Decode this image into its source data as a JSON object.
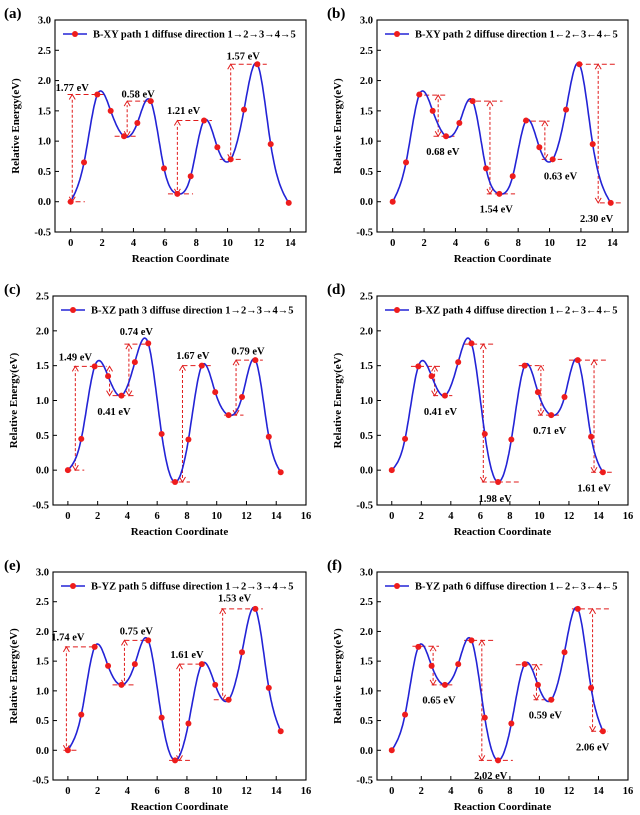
{
  "figure": {
    "colors": {
      "curve": "#2323d6",
      "marker": "#ee1c1c",
      "annotation": "#e01b1b",
      "axis": "#000000"
    }
  },
  "chart_data": [
    {
      "type": "line",
      "panel_label": "(a)",
      "legend": "B-XY path 1 diffuse direction 1→2→3→4→5",
      "xlabel": "Reaction Coordinate",
      "ylabel": "Relative Energy(eV)",
      "xlim": [
        -1,
        15
      ],
      "xticks": [
        0,
        2,
        4,
        6,
        8,
        10,
        12,
        14
      ],
      "ylim": [
        -0.5,
        3.0
      ],
      "yticks": [
        -0.5,
        0.0,
        0.5,
        1.0,
        1.5,
        2.0,
        2.5,
        3.0
      ],
      "grid": false,
      "legend_position": "top-left",
      "series": [
        {
          "x": [
            0,
            0.85,
            1.7,
            2.55,
            3.4,
            4.25,
            5.1,
            5.95,
            6.8,
            7.65,
            8.5,
            9.35,
            10.2,
            11.05,
            11.9,
            12.75,
            13.9
          ],
          "y": [
            0.0,
            0.65,
            1.77,
            1.5,
            1.08,
            1.3,
            1.66,
            0.55,
            0.13,
            0.42,
            1.34,
            0.9,
            0.7,
            1.52,
            2.27,
            0.95,
            -0.02
          ]
        }
      ],
      "annotations": [
        {
          "text": "1.77 eV",
          "x1": 0.1,
          "y_low": 0.0,
          "y_high": 1.77,
          "lx1": -0.2,
          "lx2": 2.2,
          "llx1": -0.2,
          "llx2": 0.9,
          "lab_x": 0.1,
          "lab_y": 1.78,
          "ha": "middle",
          "va": "above"
        },
        {
          "text": "0.58 eV",
          "x1": 3.6,
          "y_low": 1.08,
          "y_high": 1.66,
          "lx1": 3.6,
          "lx2": 5.3,
          "llx1": 2.8,
          "llx2": 4.2,
          "lab_x": 4.3,
          "lab_y": 1.67,
          "ha": "middle",
          "va": "above"
        },
        {
          "text": "1.21 eV",
          "x1": 6.8,
          "y_low": 0.13,
          "y_high": 1.34,
          "lx1": 6.8,
          "lx2": 9.0,
          "llx1": 6.2,
          "llx2": 7.8,
          "lab_x": 7.2,
          "lab_y": 1.4,
          "ha": "middle",
          "va": "above"
        },
        {
          "text": "1.57 eV",
          "x1": 10.2,
          "y_low": 0.7,
          "y_high": 2.27,
          "lx1": 10.2,
          "lx2": 12.5,
          "llx1": 9.5,
          "llx2": 11.0,
          "lab_x": 11.0,
          "lab_y": 2.3,
          "ha": "middle",
          "va": "above"
        }
      ]
    },
    {
      "type": "line",
      "panel_label": "(b)",
      "legend": "B-XY path 2 diffuse direction 1←2←3←4←5",
      "xlabel": "Reaction Coordinate",
      "ylabel": "Relative Energy(eV)",
      "xlim": [
        -1,
        15
      ],
      "xticks": [
        0,
        2,
        4,
        6,
        8,
        10,
        12,
        14
      ],
      "ylim": [
        -0.5,
        3.0
      ],
      "yticks": [
        -0.5,
        0.0,
        0.5,
        1.0,
        1.5,
        2.0,
        2.5,
        3.0
      ],
      "grid": false,
      "legend_position": "top-left",
      "series": [
        {
          "x": [
            0,
            0.85,
            1.7,
            2.55,
            3.4,
            4.25,
            5.1,
            5.95,
            6.8,
            7.65,
            8.5,
            9.35,
            10.2,
            11.05,
            11.9,
            12.75,
            13.9
          ],
          "y": [
            0.0,
            0.65,
            1.77,
            1.5,
            1.08,
            1.3,
            1.66,
            0.55,
            0.13,
            0.42,
            1.34,
            0.9,
            0.7,
            1.52,
            2.27,
            0.95,
            -0.02
          ]
        }
      ],
      "annotations": [
        {
          "text": "0.68 eV",
          "x1": 2.9,
          "y_low": 1.08,
          "y_high": 1.76,
          "lx1": 1.5,
          "lx2": 3.4,
          "llx1": 2.6,
          "llx2": 4.0,
          "lab_x": 3.2,
          "lab_y": 0.95,
          "ha": "middle",
          "va": "below"
        },
        {
          "text": "1.54 eV",
          "x1": 6.2,
          "y_low": 0.13,
          "y_high": 1.66,
          "lx1": 4.8,
          "lx2": 7.0,
          "llx1": 6.0,
          "llx2": 7.8,
          "lab_x": 6.6,
          "lab_y": 0.0,
          "ha": "middle",
          "va": "below"
        },
        {
          "text": "0.63 eV",
          "x1": 9.7,
          "y_low": 0.7,
          "y_high": 1.33,
          "lx1": 8.3,
          "lx2": 10.0,
          "llx1": 9.5,
          "llx2": 10.8,
          "lab_x": 10.7,
          "lab_y": 0.55,
          "ha": "middle",
          "va": "below"
        },
        {
          "text": "2.30 eV",
          "x1": 13.1,
          "y_low": -0.02,
          "y_high": 2.27,
          "lx1": 11.8,
          "lx2": 14.3,
          "llx1": 13.2,
          "llx2": 14.7,
          "lab_x": 13.0,
          "lab_y": -0.15,
          "ha": "middle",
          "va": "below"
        }
      ]
    },
    {
      "type": "line",
      "panel_label": "(c)",
      "legend": "B-XZ path 3 diffuse direction 1→2→3→4→5",
      "xlabel": "Reaction Coordinate",
      "ylabel": "Relative Energy(eV)",
      "xlim": [
        -1,
        16
      ],
      "xticks": [
        0,
        2,
        4,
        6,
        8,
        10,
        12,
        14,
        16
      ],
      "ylim": [
        -0.5,
        2.5
      ],
      "yticks": [
        -0.5,
        0.0,
        0.5,
        1.0,
        1.5,
        2.0,
        2.5
      ],
      "grid": false,
      "legend_position": "top-left",
      "series": [
        {
          "x": [
            0,
            0.9,
            1.8,
            2.7,
            3.6,
            4.5,
            5.4,
            6.3,
            7.2,
            8.1,
            9.0,
            9.9,
            10.8,
            11.7,
            12.6,
            13.5,
            14.3
          ],
          "y": [
            0.0,
            0.45,
            1.49,
            1.35,
            1.07,
            1.55,
            1.82,
            0.52,
            -0.17,
            0.44,
            1.5,
            1.12,
            0.79,
            1.05,
            1.58,
            0.48,
            -0.03
          ]
        }
      ],
      "annotations": [
        {
          "text": "1.49 eV",
          "x1": 0.5,
          "y_low": 0.0,
          "y_high": 1.49,
          "lx1": 0.4,
          "lx2": 2.6,
          "llx1": -0.1,
          "llx2": 1.1,
          "lab_x": 0.5,
          "lab_y": 1.53,
          "ha": "middle",
          "va": "above"
        },
        {
          "text": "0.74 eV",
          "x1": 4.1,
          "y_low": 1.07,
          "y_high": 1.81,
          "lx1": 3.8,
          "lx2": 5.5,
          "llx1": 3.0,
          "llx2": 4.5,
          "lab_x": 4.6,
          "lab_y": 1.9,
          "ha": "middle",
          "va": "above"
        },
        {
          "text": "0.41 eV",
          "x1": 2.8,
          "y_low": 1.07,
          "y_high": 1.49,
          "lx1": -5,
          "lx2": -5,
          "llx1": -5,
          "llx2": -5,
          "lab_x": 3.1,
          "lab_y": 0.95,
          "ha": "middle",
          "va": "below"
        },
        {
          "text": "1.67 eV",
          "x1": 7.7,
          "y_low": -0.17,
          "y_high": 1.5,
          "lx1": 7.7,
          "lx2": 9.6,
          "llx1": 6.9,
          "llx2": 8.2,
          "lab_x": 8.4,
          "lab_y": 1.55,
          "ha": "middle",
          "va": "above"
        },
        {
          "text": "0.79 eV",
          "x1": 11.3,
          "y_low": 0.79,
          "y_high": 1.58,
          "lx1": 11.3,
          "lx2": 13.1,
          "llx1": 10.5,
          "llx2": 11.8,
          "lab_x": 12.1,
          "lab_y": 1.62,
          "ha": "middle",
          "va": "above"
        }
      ]
    },
    {
      "type": "line",
      "panel_label": "(d)",
      "legend": "B-XZ path 4 diffuse direction 1←2←3←4←5",
      "xlabel": "Reaction Coordinate",
      "ylabel": "Relative Energy(eV)",
      "xlim": [
        -1,
        16
      ],
      "xticks": [
        0,
        2,
        4,
        6,
        8,
        10,
        12,
        14,
        16
      ],
      "ylim": [
        -0.5,
        2.5
      ],
      "yticks": [
        -0.5,
        0.0,
        0.5,
        1.0,
        1.5,
        2.0,
        2.5
      ],
      "grid": false,
      "legend_position": "top-left",
      "series": [
        {
          "x": [
            0,
            0.9,
            1.8,
            2.7,
            3.6,
            4.5,
            5.4,
            6.3,
            7.2,
            8.1,
            9.0,
            9.9,
            10.8,
            11.7,
            12.6,
            13.5,
            14.3
          ],
          "y": [
            0.0,
            0.45,
            1.49,
            1.35,
            1.07,
            1.55,
            1.82,
            0.52,
            -0.17,
            0.44,
            1.5,
            1.12,
            0.79,
            1.05,
            1.58,
            0.48,
            -0.03
          ]
        }
      ],
      "annotations": [
        {
          "text": "0.41 eV",
          "x1": 2.9,
          "y_low": 1.07,
          "y_high": 1.49,
          "lx1": 1.3,
          "lx2": 3.3,
          "llx1": 2.8,
          "llx2": 4.1,
          "lab_x": 3.3,
          "lab_y": 0.95,
          "ha": "middle",
          "va": "below"
        },
        {
          "text": "1.98 eV",
          "x1": 6.2,
          "y_low": -0.17,
          "y_high": 1.81,
          "lx1": 4.9,
          "lx2": 6.9,
          "llx1": 6.1,
          "llx2": 8.6,
          "lab_x": 7.0,
          "lab_y": -0.3,
          "ha": "middle",
          "va": "below"
        },
        {
          "text": "0.71 eV",
          "x1": 10.1,
          "y_low": 0.79,
          "y_high": 1.5,
          "lx1": 8.6,
          "lx2": 10.3,
          "llx1": 9.9,
          "llx2": 11.4,
          "lab_x": 10.7,
          "lab_y": 0.68,
          "ha": "middle",
          "va": "below"
        },
        {
          "text": "1.61 eV",
          "x1": 13.7,
          "y_low": -0.03,
          "y_high": 1.58,
          "lx1": 12.0,
          "lx2": 14.5,
          "llx1": 13.5,
          "llx2": 14.9,
          "lab_x": 13.7,
          "lab_y": -0.15,
          "ha": "middle",
          "va": "below"
        }
      ]
    },
    {
      "type": "line",
      "panel_label": "(e)",
      "legend": "B-YZ path 5 diffuse direction 1→2→3→4→5",
      "xlabel": "Reaction Coordinate",
      "ylabel": "Relative Energy(eV)",
      "xlim": [
        -1,
        16
      ],
      "xticks": [
        0,
        2,
        4,
        6,
        8,
        10,
        12,
        14,
        16
      ],
      "ylim": [
        -0.5,
        3.0
      ],
      "yticks": [
        -0.5,
        0.0,
        0.5,
        1.0,
        1.5,
        2.0,
        2.5,
        3.0
      ],
      "grid": false,
      "legend_position": "top-left",
      "series": [
        {
          "x": [
            0,
            0.9,
            1.8,
            2.7,
            3.6,
            4.5,
            5.4,
            6.3,
            7.2,
            8.1,
            9.0,
            9.9,
            10.8,
            11.7,
            12.6,
            13.5,
            14.3
          ],
          "y": [
            0.0,
            0.6,
            1.74,
            1.42,
            1.1,
            1.45,
            1.85,
            0.55,
            -0.17,
            0.45,
            1.45,
            1.1,
            0.85,
            1.65,
            2.38,
            1.05,
            0.32
          ]
        }
      ],
      "annotations": [
        {
          "text": "1.74 eV",
          "x1": -0.1,
          "y_low": 0.0,
          "y_high": 1.74,
          "lx1": -0.2,
          "lx2": 1.9,
          "llx1": -0.3,
          "llx2": 0.6,
          "lab_x": 0.0,
          "lab_y": 1.8,
          "ha": "middle",
          "va": "above"
        },
        {
          "text": "0.75 eV",
          "x1": 3.8,
          "y_low": 1.1,
          "y_high": 1.85,
          "lx1": 3.8,
          "lx2": 5.4,
          "llx1": 3.0,
          "llx2": 4.5,
          "lab_x": 4.6,
          "lab_y": 1.9,
          "ha": "middle",
          "va": "above"
        },
        {
          "text": "1.61 eV",
          "x1": 7.5,
          "y_low": -0.17,
          "y_high": 1.45,
          "lx1": 7.5,
          "lx2": 9.0,
          "llx1": 6.8,
          "llx2": 8.2,
          "lab_x": 8.0,
          "lab_y": 1.5,
          "ha": "middle",
          "va": "above"
        },
        {
          "text": "1.53 eV",
          "x1": 10.4,
          "y_low": 0.85,
          "y_high": 2.38,
          "lx1": 10.3,
          "lx2": 13.1,
          "llx1": 9.8,
          "llx2": 11.0,
          "lab_x": 11.2,
          "lab_y": 2.45,
          "ha": "middle",
          "va": "above"
        }
      ]
    },
    {
      "type": "line",
      "panel_label": "(f)",
      "legend": "B-YZ path 6 diffuse direction 1←2←3←4←5",
      "xlabel": "Reaction Coordinate",
      "ylabel": "Relative Energy(eV)",
      "xlim": [
        -1,
        16
      ],
      "xticks": [
        0,
        2,
        4,
        6,
        8,
        10,
        12,
        14,
        16
      ],
      "ylim": [
        -0.5,
        3.0
      ],
      "yticks": [
        -0.5,
        0.0,
        0.5,
        1.0,
        1.5,
        2.0,
        2.5,
        3.0
      ],
      "grid": false,
      "legend_position": "top-left",
      "series": [
        {
          "x": [
            0,
            0.9,
            1.8,
            2.7,
            3.6,
            4.5,
            5.4,
            6.3,
            7.2,
            8.1,
            9.0,
            9.9,
            10.8,
            11.7,
            12.6,
            13.5,
            14.3
          ],
          "y": [
            0.0,
            0.6,
            1.74,
            1.42,
            1.1,
            1.45,
            1.85,
            0.55,
            -0.17,
            0.45,
            1.45,
            1.1,
            0.85,
            1.65,
            2.38,
            1.05,
            0.32
          ]
        }
      ],
      "annotations": [
        {
          "text": "0.65 eV",
          "x1": 2.8,
          "y_low": 1.1,
          "y_high": 1.75,
          "lx1": 1.4,
          "lx2": 3.2,
          "llx1": 2.7,
          "llx2": 4.1,
          "lab_x": 3.2,
          "lab_y": 0.97,
          "ha": "middle",
          "va": "below"
        },
        {
          "text": "2.02 eV",
          "x1": 6.1,
          "y_low": -0.17,
          "y_high": 1.85,
          "lx1": 4.9,
          "lx2": 6.9,
          "llx1": 5.9,
          "llx2": 8.2,
          "lab_x": 6.7,
          "lab_y": -0.3,
          "ha": "middle",
          "va": "below"
        },
        {
          "text": "0.59 eV",
          "x1": 9.8,
          "y_low": 0.85,
          "y_high": 1.44,
          "lx1": 8.4,
          "lx2": 10.2,
          "llx1": 9.6,
          "llx2": 11.2,
          "lab_x": 10.4,
          "lab_y": 0.72,
          "ha": "middle",
          "va": "below"
        },
        {
          "text": "2.06 eV",
          "x1": 13.6,
          "y_low": 0.32,
          "y_high": 2.38,
          "lx1": 12.2,
          "lx2": 14.8,
          "llx1": 13.5,
          "llx2": 14.6,
          "lab_x": 13.6,
          "lab_y": 0.18,
          "ha": "middle",
          "va": "below"
        }
      ]
    }
  ]
}
